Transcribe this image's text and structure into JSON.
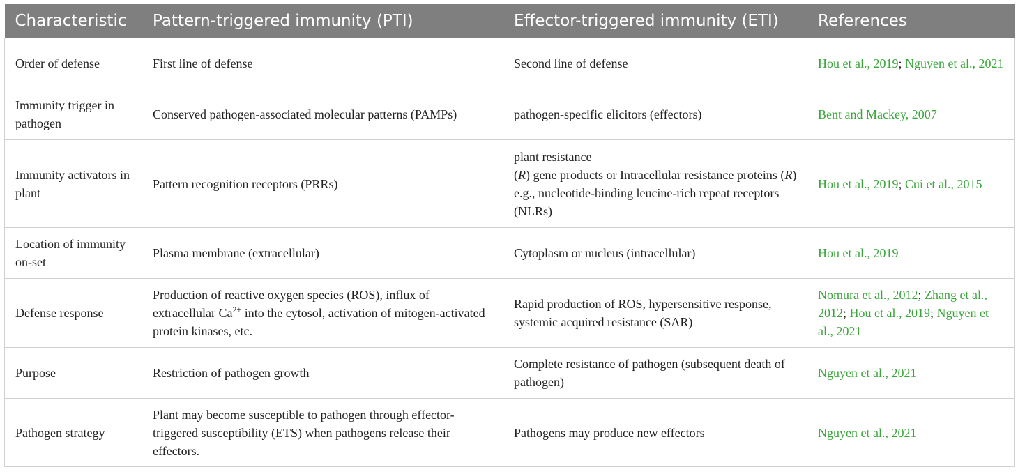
{
  "table": {
    "headers": [
      "Characteristic",
      "Pattern-triggered immunity (PTI)",
      "Effector-triggered immunity (ETI)",
      "References"
    ],
    "rows": [
      {
        "characteristic": "Order of defense",
        "pti": "First line of defense",
        "eti": "Second line of defense",
        "ref_1": "Hou et al., 2019",
        "ref_2": "Nguyen et al., 2021"
      },
      {
        "characteristic": "Immunity trigger in pathogen",
        "pti": "Conserved pathogen-associated molecular patterns (PAMPs)",
        "eti": "pathogen-specific elicitors (effectors)",
        "ref_1": "Bent and Mackey, 2007"
      },
      {
        "characteristic": "Immunity activators in plant",
        "pti": "Pattern recognition receptors (PRRs)",
        "eti_line1": "plant resistance",
        "eti_r1": "R",
        "eti_mid": "gene products or Intracellular resistance proteins",
        "eti_r2": "R",
        "eti_end": "e.g., nucleotide-binding leucine-rich repeat receptors (NLRs)",
        "ref_1": "Hou et al., 2019",
        "ref_2": "Cui et al., 2015"
      },
      {
        "characteristic": "Location of immunity on-set",
        "pti": "Plasma membrane (extracellular)",
        "eti": "Cytoplasm or nucleus (intracellular)",
        "ref_1": "Hou et al., 2019"
      },
      {
        "characteristic": "Defense response",
        "pti_a": "Production of reactive oxygen species (ROS), influx of extracellular Ca",
        "pti_sup": "2+",
        "pti_b": "into the cytosol, activation of mitogen-activated protein kinases, etc.",
        "eti": "Rapid production of ROS, hypersensitive response, systemic acquired resistance (SAR)",
        "ref_1": "Nomura et al., 2012",
        "ref_2": "Zhang et al., 2012",
        "ref_3": "Hou et al., 2019",
        "ref_4": "Nguyen et al., 2021"
      },
      {
        "characteristic": "Purpose",
        "pti": "Restriction of pathogen growth",
        "eti": "Complete resistance of pathogen (subsequent death of pathogen)",
        "ref_1": "Nguyen et al., 2021"
      },
      {
        "characteristic": "Pathogen strategy",
        "pti": "Plant may become susceptible to pathogen through effector-triggered susceptibility (ETS) when pathogens release their effectors.",
        "eti": "Pathogens may produce new effectors",
        "ref_1": "Nguyen et al., 2021"
      }
    ],
    "separator": ";",
    "colors": {
      "header_bg": "#7f7f7f",
      "header_text": "#ffffff",
      "reference_link": "#3aa63a",
      "border": "#d0d0d0"
    }
  }
}
